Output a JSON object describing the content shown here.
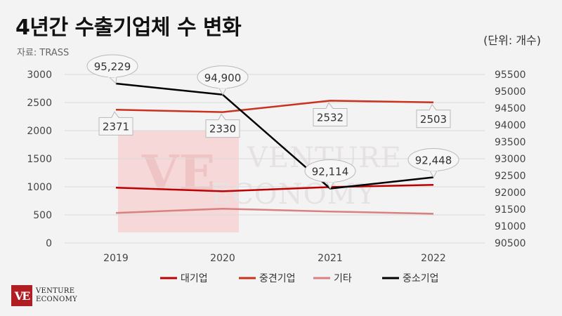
{
  "header": {
    "title": "4년간 수출기업체 수 변화",
    "source": "자료: TRASS",
    "unit": "(단위: 개수)"
  },
  "watermark": {
    "monogram": "VE",
    "line1": "VENTURE",
    "line2": "ECONOMY"
  },
  "footer": {
    "logo_mark": "VE",
    "logo_line1": "VENTURE",
    "logo_line2": "ECONOMY"
  },
  "colors": {
    "대기업": "#c00000",
    "중견기업": "#c8321e",
    "기타": "#d98080",
    "중소기업": "#000000"
  },
  "chart_data": {
    "type": "line",
    "title": "4년간 수출기업체 수 변화",
    "categories": [
      "2019",
      "2020",
      "2021",
      "2022"
    ],
    "y_left": {
      "range": [
        0,
        3000
      ],
      "ticks": [
        0,
        500,
        1000,
        1500,
        2000,
        2500,
        3000
      ]
    },
    "y_right": {
      "range": [
        90500,
        95500
      ],
      "ticks": [
        90500,
        91000,
        91500,
        92000,
        92500,
        93000,
        93500,
        94000,
        94500,
        95000,
        95500
      ]
    },
    "legend_position": "bottom",
    "series": [
      {
        "name": "대기업",
        "axis": "left",
        "values": [
          985,
          920,
          995,
          1035
        ]
      },
      {
        "name": "중견기업",
        "axis": "left",
        "values": [
          2371,
          2330,
          2532,
          2503
        ],
        "labels": [
          "2371",
          "2330",
          "2532",
          "2503"
        ]
      },
      {
        "name": "기타",
        "axis": "left",
        "values": [
          535,
          610,
          560,
          520
        ]
      },
      {
        "name": "중소기업",
        "axis": "right",
        "values": [
          95229,
          94900,
          92114,
          92448
        ],
        "labels": [
          "95,229",
          "94,900",
          "92,114",
          "92,448"
        ]
      }
    ]
  }
}
